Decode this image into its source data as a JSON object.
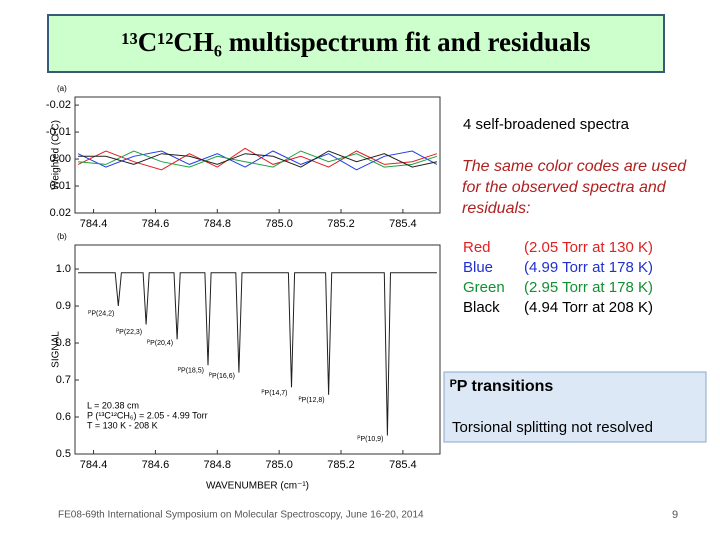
{
  "title": "¹³C¹²CH₆ multispectrum fit and residuals",
  "chart_data": [
    {
      "type": "line",
      "panel_label": "(a)",
      "y_label": "Weighted (O-C)",
      "y_inverted": true,
      "xlim": [
        784.34,
        785.52
      ],
      "xticks": [
        784.4,
        784.6,
        {
          "value": 784.8,
          "label": "784.8"
        },
        {
          "value": 785,
          "label": "785.0"
        },
        785.2,
        785.4
      ],
      "ylim": [
        -0.023,
        0.02
      ],
      "yticks": [
        -0.02,
        -0.01,
        {
          "value": 0,
          "label": "0.00"
        },
        0.01,
        0.02
      ],
      "x": [
        784.35,
        784.44,
        784.53,
        784.62,
        784.71,
        784.8,
        784.89,
        784.98,
        785.07,
        785.16,
        785.25,
        785.34,
        785.43,
        785.51
      ],
      "series": [
        {
          "color": "#e02020",
          "values": [
            0.002,
            -0.003,
            0.001,
            0.004,
            -0.002,
            0.003,
            -0.004,
            0.002,
            -0.001,
            0.003,
            -0.003,
            0.002,
            0.001,
            -0.002
          ]
        },
        {
          "color": "#2040e0",
          "values": [
            -0.002,
            0.003,
            -0.001,
            -0.003,
            0.002,
            -0.002,
            0.003,
            -0.003,
            0.002,
            -0.002,
            0.004,
            -0.001,
            -0.003,
            0.002
          ]
        },
        {
          "color": "#20a040",
          "values": [
            0.001,
            0.002,
            -0.003,
            0.001,
            0.003,
            -0.001,
            0.001,
            0.003,
            -0.003,
            0.001,
            -0.002,
            0.003,
            0.002,
            -0.001
          ]
        },
        {
          "color": "#202020",
          "values": [
            -0.001,
            -0.001,
            0.002,
            -0.002,
            -0.001,
            0.002,
            -0.002,
            -0.001,
            0.003,
            -0.003,
            0.001,
            -0.002,
            0.003,
            0.001
          ]
        }
      ]
    },
    {
      "type": "line",
      "panel_label": "(b)",
      "y_label": "SIGNAL",
      "x_label": "WAVENUMBER (cm⁻¹)",
      "xlim": [
        784.34,
        785.52
      ],
      "xticks": [
        784.4,
        784.6,
        {
          "value": 784.8,
          "label": "784.8"
        },
        {
          "value": 785,
          "label": "785.0"
        },
        785.2,
        785.4
      ],
      "ylim": [
        0.5,
        1.065
      ],
      "yticks": [
        0.5,
        0.6,
        0.7,
        0.8,
        0.9,
        {
          "value": 1,
          "label": "1.0"
        }
      ],
      "x": [
        784.35,
        784.47,
        784.48,
        784.49,
        784.56,
        784.57,
        784.58,
        784.66,
        784.67,
        784.68,
        784.76,
        784.77,
        784.78,
        784.86,
        784.87,
        784.88,
        785.03,
        785.04,
        785.05,
        785.15,
        785.16,
        785.17,
        785.34,
        785.35,
        785.36,
        785.51
      ],
      "series": [
        {
          "color": "#202020",
          "values": [
            0.99,
            0.99,
            0.9,
            0.99,
            0.99,
            0.85,
            0.99,
            0.99,
            0.81,
            0.99,
            0.99,
            0.74,
            0.99,
            0.99,
            0.72,
            0.99,
            0.99,
            0.68,
            0.99,
            0.99,
            0.66,
            0.99,
            0.99,
            0.55,
            0.99,
            0.99
          ]
        }
      ],
      "annotations": [
        {
          "x": 784.48,
          "y": 0.88,
          "label": "ᴾP(24,2)"
        },
        {
          "x": 784.57,
          "y": 0.83,
          "label": "ᴾP(22,3)"
        },
        {
          "x": 784.67,
          "y": 0.8,
          "label": "ᴾP(20,4)"
        },
        {
          "x": 784.77,
          "y": 0.725,
          "label": "ᴾP(18,5)"
        },
        {
          "x": 784.87,
          "y": 0.71,
          "label": "ᴾP(16,6)"
        },
        {
          "x": 785.04,
          "y": 0.665,
          "label": "ᴾP(14,7)"
        },
        {
          "x": 785.16,
          "y": 0.645,
          "label": "ᴾP(12,8)"
        },
        {
          "x": 785.35,
          "y": 0.54,
          "label": "ᴾP(10,9)"
        }
      ],
      "conditions": [
        "L = 20.38 cm",
        "P (¹³C¹²CH₆) = 2.05 - 4.99 Torr",
        "T = 130 K - 208 K"
      ]
    }
  ],
  "notes": {
    "heading": "4 self-broadened spectra",
    "color_note": "The same color codes are used for the observed spectra and residuals:",
    "rows": [
      {
        "name": "Red",
        "text": "(2.05 Torr at 130 K)"
      },
      {
        "name": "Blue",
        "text": "(4.99 Torr at 178 K)"
      },
      {
        "name": "Green",
        "text": "(2.95 Torr at 178 K)"
      },
      {
        "name": "Black",
        "text": "(4.94 Torr at 208 K)"
      }
    ]
  },
  "box": {
    "heading": "ᴾP transitions",
    "text": "Torsional splitting not resolved"
  },
  "footer": "FE08-69th International Symposium on Molecular Spectroscopy, June 16-20, 2014",
  "page_number": "9"
}
